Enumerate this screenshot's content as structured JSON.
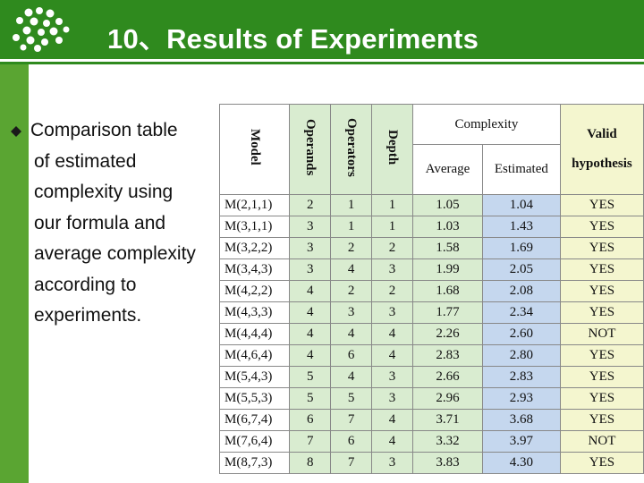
{
  "header": {
    "title": "10、Results of Experiments",
    "colors": {
      "primary": "#2f8a1e",
      "secondary": "#5aa532"
    }
  },
  "bullet": {
    "lines": [
      "Comparison table",
      "of estimated",
      "complexity using",
      "our formula and",
      "average complexity",
      "according to",
      "experiments."
    ]
  },
  "table": {
    "headers": {
      "model": "Model",
      "operands": "Operands",
      "operators": "Operators",
      "depth": "Depth",
      "complexity": "Complexity",
      "average": "Average",
      "estimated": "Estimated",
      "valid_line1": "Valid",
      "valid_line2": "hypothesis"
    },
    "rows": [
      [
        "M(2,1,1)",
        "2",
        "1",
        "1",
        "1.05",
        "1.04",
        "YES"
      ],
      [
        "M(3,1,1)",
        "3",
        "1",
        "1",
        "1.03",
        "1.43",
        "YES"
      ],
      [
        "M(3,2,2)",
        "3",
        "2",
        "2",
        "1.58",
        "1.69",
        "YES"
      ],
      [
        "M(3,4,3)",
        "3",
        "4",
        "3",
        "1.99",
        "2.05",
        "YES"
      ],
      [
        "M(4,2,2)",
        "4",
        "2",
        "2",
        "1.68",
        "2.08",
        "YES"
      ],
      [
        "M(4,3,3)",
        "4",
        "3",
        "3",
        "1.77",
        "2.34",
        "YES"
      ],
      [
        "M(4,4,4)",
        "4",
        "4",
        "4",
        "2.26",
        "2.60",
        "NOT"
      ],
      [
        "M(4,6,4)",
        "4",
        "6",
        "4",
        "2.83",
        "2.80",
        "YES"
      ],
      [
        "M(5,4,3)",
        "5",
        "4",
        "3",
        "2.66",
        "2.83",
        "YES"
      ],
      [
        "M(5,5,3)",
        "5",
        "5",
        "3",
        "2.96",
        "2.93",
        "YES"
      ],
      [
        "M(6,7,4)",
        "6",
        "7",
        "4",
        "3.71",
        "3.68",
        "YES"
      ],
      [
        "M(7,6,4)",
        "7",
        "6",
        "4",
        "3.32",
        "3.97",
        "NOT"
      ],
      [
        "M(8,7,3)",
        "8",
        "7",
        "3",
        "3.83",
        "4.30",
        "YES"
      ]
    ]
  }
}
